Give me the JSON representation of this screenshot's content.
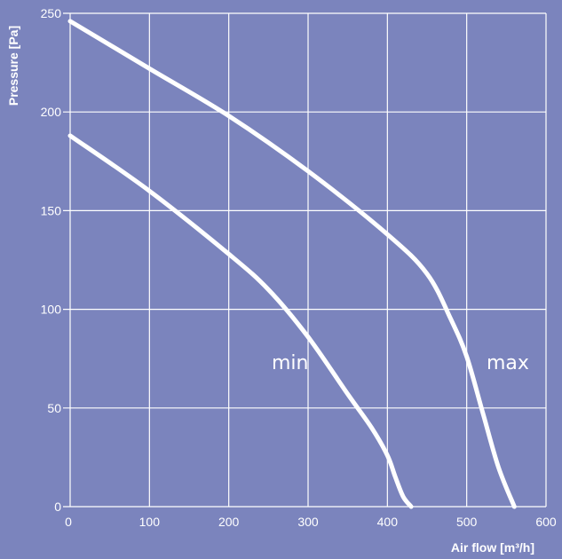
{
  "chart_data": {
    "type": "line",
    "title": "",
    "xlabel": "Air flow [m³/h]",
    "ylabel": "Pressure [Pa]",
    "xlim": [
      0,
      600
    ],
    "ylim": [
      0,
      250
    ],
    "xticks": [
      "0",
      "100",
      "200",
      "300",
      "400",
      "500",
      "600"
    ],
    "yticks": [
      "0",
      "50",
      "100",
      "150",
      "200",
      "250"
    ],
    "grid": true,
    "legend": "none",
    "colors": {
      "background": "#7b84bd",
      "line": "#ffffff",
      "grid": "#ffffff"
    },
    "series": [
      {
        "name": "max",
        "x": [
          0,
          100,
          200,
          300,
          400,
          450,
          480,
          500,
          520,
          540,
          560
        ],
        "y": [
          246,
          222,
          198,
          170,
          138,
          118,
          95,
          76,
          48,
          20,
          0
        ]
      },
      {
        "name": "min",
        "x": [
          0,
          100,
          200,
          250,
          300,
          350,
          380,
          400,
          410,
          420,
          430
        ],
        "y": [
          188,
          160,
          128,
          110,
          86,
          57,
          40,
          26,
          15,
          5,
          0
        ]
      }
    ]
  }
}
